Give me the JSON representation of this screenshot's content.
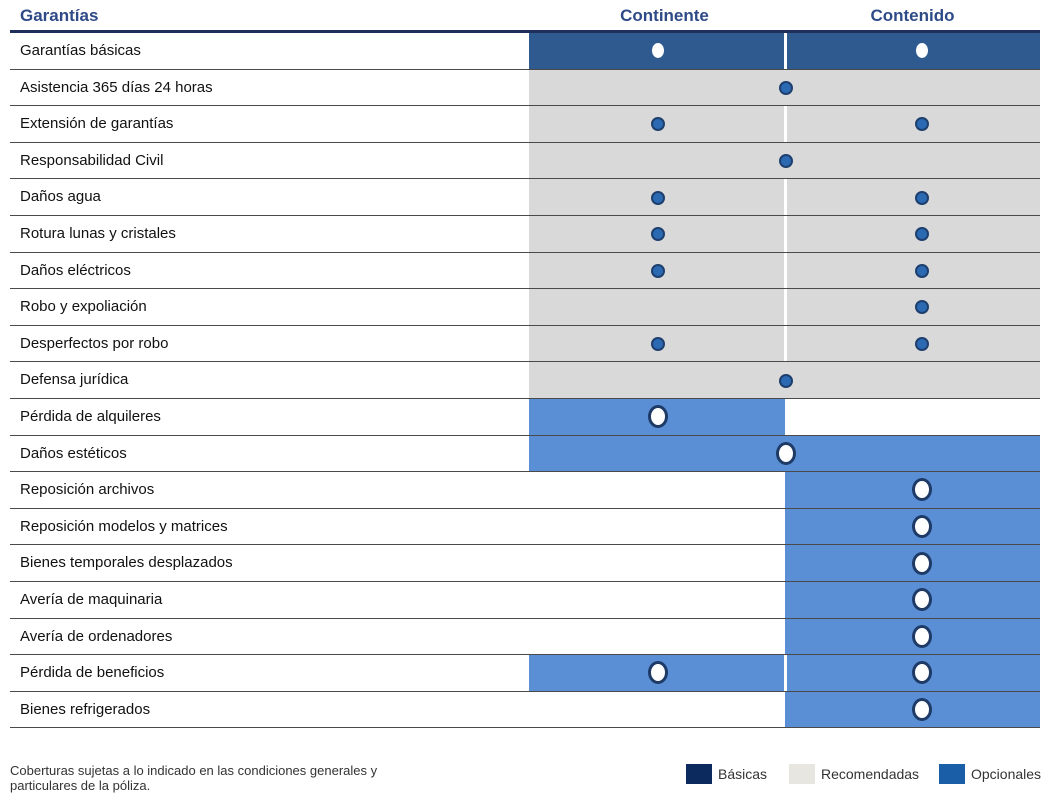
{
  "header": {
    "garantias": "Garantías",
    "continente": "Continente",
    "contenido": "Contenido"
  },
  "colors": {
    "basica": "#2e5a8f",
    "recomendada": "#d9d9d9",
    "opcional": "#5a8fd6",
    "dot": "#2b6ab3"
  },
  "rows": [
    {
      "label": "Garantías básicas",
      "continente": "basica",
      "contenido": "basica",
      "span": false
    },
    {
      "label": "Asistencia 365 días 24 horas",
      "continente": "recomendada",
      "contenido": "recomendada",
      "span": true
    },
    {
      "label": "Extensión de garantías",
      "continente": "recomendada",
      "contenido": "recomendada",
      "span": false
    },
    {
      "label": "Responsabilidad Civil",
      "continente": "recomendada",
      "contenido": "recomendada",
      "span": true
    },
    {
      "label": "Daños agua",
      "continente": "recomendada",
      "contenido": "recomendada",
      "span": false
    },
    {
      "label": "Rotura lunas y cristales",
      "continente": "recomendada",
      "contenido": "recomendada",
      "span": false
    },
    {
      "label": "Daños eléctricos",
      "continente": "recomendada",
      "contenido": "recomendada",
      "span": false
    },
    {
      "label": "Robo y expoliación",
      "continente": "recomendada-empty",
      "contenido": "recomendada",
      "span": false
    },
    {
      "label": "Desperfectos por robo",
      "continente": "recomendada",
      "contenido": "recomendada",
      "span": false
    },
    {
      "label": "Defensa jurídica",
      "continente": "recomendada",
      "contenido": "recomendada",
      "span": true
    },
    {
      "label": "Pérdida de alquileres",
      "continente": "opcional",
      "contenido": "none",
      "span": false
    },
    {
      "label": "Daños estéticos",
      "continente": "opcional",
      "contenido": "opcional",
      "span": true
    },
    {
      "label": "Reposición archivos",
      "continente": "none",
      "contenido": "opcional",
      "span": false
    },
    {
      "label": "Reposición modelos y matrices",
      "continente": "none",
      "contenido": "opcional",
      "span": false
    },
    {
      "label": "Bienes temporales desplazados",
      "continente": "none",
      "contenido": "opcional",
      "span": false
    },
    {
      "label": "Avería de maquinaria",
      "continente": "none",
      "contenido": "opcional",
      "span": false
    },
    {
      "label": "Avería de ordenadores",
      "continente": "none",
      "contenido": "opcional",
      "span": false
    },
    {
      "label": "Pérdida de beneficios",
      "continente": "opcional",
      "contenido": "opcional",
      "span": false
    },
    {
      "label": "Bienes refrigerados",
      "continente": "none",
      "contenido": "opcional",
      "span": false
    }
  ],
  "legend": [
    {
      "label": "Básicas",
      "color": "#0d2a5e"
    },
    {
      "label": "Recomendadas",
      "color": "#e8e6e0"
    },
    {
      "label": "Opcionales",
      "color": "#1a5ea8"
    }
  ],
  "footnote": "Coberturas sujetas a lo indicado en las condiciones generales y particulares de la póliza."
}
